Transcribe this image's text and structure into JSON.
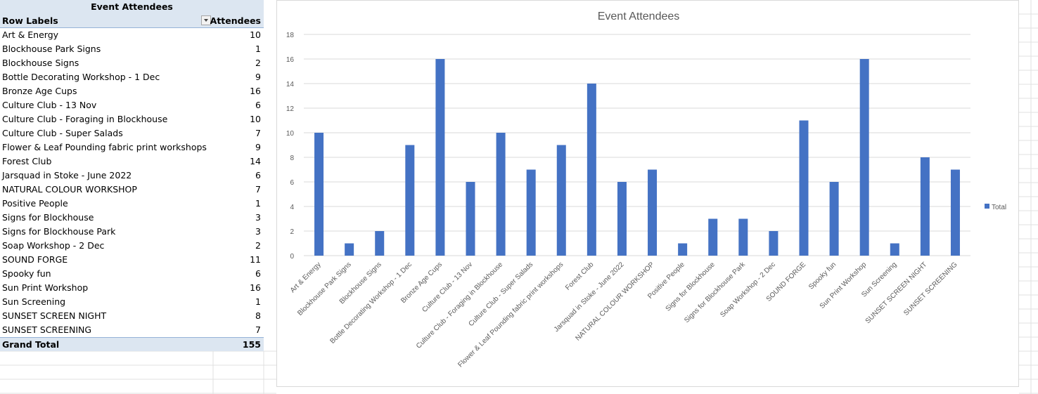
{
  "pivot": {
    "title": "Event Attendees",
    "col_row_labels": "Row Labels",
    "col_attendees": "Attendees",
    "rows": [
      {
        "label": "Art & Energy",
        "value": "10"
      },
      {
        "label": "Blockhouse Park Signs",
        "value": "1"
      },
      {
        "label": "Blockhouse Signs",
        "value": "2"
      },
      {
        "label": "Bottle Decorating Workshop - 1 Dec",
        "value": "9"
      },
      {
        "label": "Bronze Age Cups",
        "value": "16"
      },
      {
        "label": "Culture Club - 13 Nov",
        "value": "6"
      },
      {
        "label": "Culture Club - Foraging in Blockhouse",
        "value": "10"
      },
      {
        "label": "Culture Club - Super Salads",
        "value": "7"
      },
      {
        "label": "Flower & Leaf Pounding fabric print workshops",
        "value": "9"
      },
      {
        "label": "Forest Club",
        "value": "14"
      },
      {
        "label": "Jarsquad in Stoke - June 2022",
        "value": "6"
      },
      {
        "label": "NATURAL COLOUR WORKSHOP",
        "value": "7"
      },
      {
        "label": "Positive People",
        "value": "1"
      },
      {
        "label": "Signs for Blockhouse",
        "value": "3"
      },
      {
        "label": "Signs for Blockhouse Park",
        "value": "3"
      },
      {
        "label": "Soap Workshop - 2 Dec",
        "value": "2"
      },
      {
        "label": "SOUND FORGE",
        "value": "11"
      },
      {
        "label": "Spooky fun",
        "value": "6"
      },
      {
        "label": "Sun Print Workshop",
        "value": "16"
      },
      {
        "label": "Sun Screening",
        "value": "1"
      },
      {
        "label": "SUNSET SCREEN NIGHT",
        "value": "8"
      },
      {
        "label": "SUNSET SCREENING",
        "value": "7"
      }
    ],
    "grand_total_label": "Grand Total",
    "grand_total_value": "155"
  },
  "chart_data": {
    "type": "bar",
    "title": "Event Attendees",
    "categories": [
      "Art & Energy",
      "Blockhouse Park Signs",
      "Blockhouse Signs",
      "Bottle Decorating Workshop - 1 Dec",
      "Bronze Age Cups",
      "Culture Club - 13 Nov",
      "Culture Club - Foraging in Blockhouse",
      "Culture Club - Super Salads",
      "Flower & Leaf Pounding fabric print workshops",
      "Forest Club",
      "Jarsquad in Stoke - June 2022",
      "NATURAL COLOUR WORKSHOP",
      "Positive People",
      "Signs for Blockhouse",
      "Signs for Blockhouse Park",
      "Soap Workshop - 2 Dec",
      "SOUND FORGE",
      "Spooky fun",
      "Sun Print Workshop",
      "Sun Screening",
      "SUNSET SCREEN NIGHT",
      "SUNSET SCREENING"
    ],
    "series": [
      {
        "name": "Total",
        "values": [
          10,
          1,
          2,
          9,
          16,
          6,
          10,
          7,
          9,
          14,
          6,
          7,
          1,
          3,
          3,
          2,
          11,
          6,
          16,
          1,
          8,
          7
        ]
      }
    ],
    "ylim": [
      0,
      18
    ],
    "yticks": [
      "0",
      "2",
      "4",
      "6",
      "8",
      "10",
      "12",
      "14",
      "16",
      "18"
    ],
    "grid": true,
    "legend": "right",
    "bar_color": "#4472c4"
  }
}
